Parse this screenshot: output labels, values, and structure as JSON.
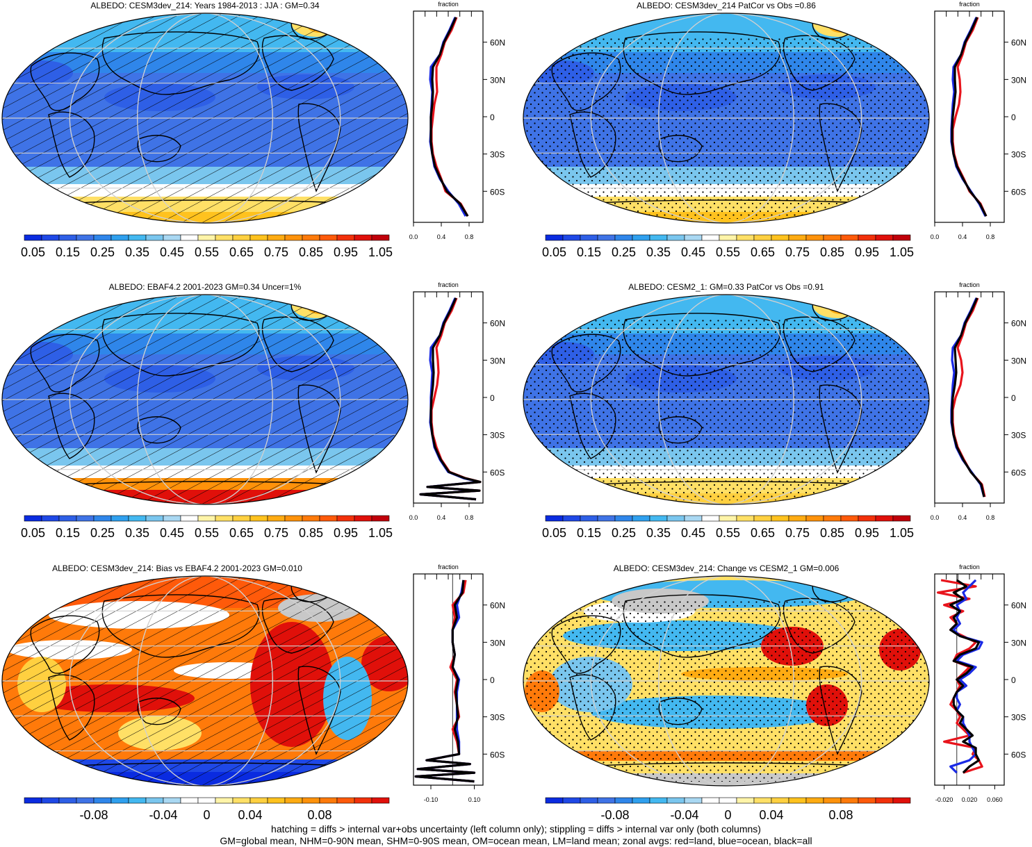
{
  "panels": [
    {
      "title": "ALBEDO: CESM3dev_214: Years 1984-2013 : JJA : GM=0.34",
      "kind": "abs",
      "hatch": true,
      "stipple": false
    },
    {
      "title": "ALBEDO: CESM3dev_214 PatCor vs Obs =0.86",
      "kind": "abs",
      "hatch": false,
      "stipple": true
    },
    {
      "title": "ALBEDO: EBAF4.2 2001-2023 GM=0.34 Uncer=1%",
      "kind": "abs",
      "hatch": true,
      "stipple": false
    },
    {
      "title": "ALBEDO: CESM2_1: GM=0.33 PatCor vs Obs =0.91",
      "kind": "abs",
      "hatch": false,
      "stipple": true
    },
    {
      "title": "ALBEDO: CESM3dev_214: Bias vs EBAF4.2 2001-2023 GM=0.010",
      "kind": "diff",
      "hatch": true,
      "stipple": false
    },
    {
      "title": "ALBEDO: CESM3dev_214: Change vs CESM2_1 GM=0.006",
      "kind": "diff",
      "hatch": false,
      "stipple": true
    }
  ],
  "colorbars": {
    "abs": {
      "colors": [
        "#0a2be0",
        "#1f48e6",
        "#2e5fe6",
        "#3f73e6",
        "#2f86ea",
        "#2fa0ee",
        "#43b8f0",
        "#7ac6ee",
        "#a9d8f2",
        "#ffffff",
        "#fff4a8",
        "#ffe066",
        "#ffd040",
        "#ffc21e",
        "#ffab12",
        "#ff920a",
        "#ff7a0a",
        "#ff5a0a",
        "#f2300a",
        "#e0100a",
        "#c0000a"
      ],
      "labels": [
        "0.05",
        "0.15",
        "0.25",
        "0.35",
        "0.45",
        "0.55",
        "0.65",
        "0.75",
        "0.85",
        "0.95",
        "1.05"
      ]
    },
    "diff": {
      "colors": [
        "#0a2be0",
        "#1f48e6",
        "#2e5fe6",
        "#3f73e6",
        "#2f86ea",
        "#2fa0ee",
        "#43b8f0",
        "#7ac6ee",
        "#a9d8f2",
        "#ffffff",
        "#ffffff",
        "#fff4a8",
        "#ffe066",
        "#ffd040",
        "#ffc21e",
        "#ffab12",
        "#ff920a",
        "#ff7a0a",
        "#ff5a0a",
        "#f2300a",
        "#e0100a"
      ],
      "labels": [
        "-0.08",
        "-0.04",
        "0",
        "0.04",
        "0.08"
      ]
    }
  },
  "chart_data": [
    {
      "type": "line",
      "panel": 0,
      "title": "fraction",
      "ylabels": [
        "60N",
        "30N",
        "0",
        "30S",
        "60S"
      ],
      "xlabels": [
        "0.0",
        "0.4",
        "0.8"
      ],
      "xlim": [
        0,
        1
      ],
      "ylim": [
        -85,
        85
      ],
      "lat": [
        80,
        70,
        60,
        50,
        40,
        30,
        20,
        10,
        0,
        -10,
        -20,
        -30,
        -40,
        -50,
        -60,
        -70,
        -80
      ],
      "series": [
        {
          "color": "red",
          "values": [
            0.62,
            0.55,
            0.45,
            0.4,
            0.33,
            0.33,
            0.34,
            0.3,
            0.28,
            0.26,
            0.26,
            0.28,
            0.33,
            0.4,
            0.46,
            0.68,
            0.78
          ]
        },
        {
          "color": "blue",
          "values": [
            0.6,
            0.52,
            0.43,
            0.38,
            0.25,
            0.24,
            0.27,
            0.26,
            0.25,
            0.25,
            0.24,
            0.27,
            0.3,
            0.38,
            0.5,
            0.65,
            0.75
          ]
        },
        {
          "color": "black",
          "values": [
            0.61,
            0.53,
            0.44,
            0.38,
            0.28,
            0.27,
            0.28,
            0.27,
            0.25,
            0.25,
            0.25,
            0.27,
            0.31,
            0.39,
            0.48,
            0.67,
            0.78
          ]
        }
      ]
    },
    {
      "type": "line",
      "panel": 1,
      "title": "fraction",
      "ylabels": [
        "60N",
        "30N",
        "0",
        "30S",
        "60S"
      ],
      "xlabels": [
        "0.0",
        "0.4",
        "0.8"
      ],
      "xlim": [
        0,
        1
      ],
      "ylim": [
        -85,
        85
      ],
      "lat": [
        80,
        70,
        60,
        50,
        40,
        30,
        20,
        10,
        0,
        -10,
        -20,
        -30,
        -40,
        -50,
        -60,
        -70,
        -80
      ],
      "series": [
        {
          "color": "red",
          "values": [
            0.62,
            0.55,
            0.45,
            0.4,
            0.33,
            0.36,
            0.37,
            0.35,
            0.3,
            0.26,
            0.26,
            0.28,
            0.33,
            0.42,
            0.5,
            0.66,
            0.74
          ]
        },
        {
          "color": "blue",
          "values": [
            0.6,
            0.52,
            0.43,
            0.38,
            0.27,
            0.26,
            0.28,
            0.26,
            0.25,
            0.24,
            0.24,
            0.27,
            0.31,
            0.4,
            0.52,
            0.64,
            0.73
          ]
        },
        {
          "color": "black",
          "values": [
            0.61,
            0.53,
            0.44,
            0.38,
            0.29,
            0.29,
            0.3,
            0.28,
            0.26,
            0.25,
            0.25,
            0.27,
            0.32,
            0.41,
            0.51,
            0.65,
            0.74
          ]
        }
      ]
    },
    {
      "type": "line",
      "panel": 2,
      "title": "fraction",
      "ylabels": [
        "60N",
        "30N",
        "0",
        "30S",
        "60S"
      ],
      "xlabels": [
        "0.0",
        "0.4",
        "0.8"
      ],
      "xlim": [
        0,
        1
      ],
      "ylim": [
        -85,
        85
      ],
      "lat": [
        80,
        70,
        60,
        50,
        40,
        30,
        20,
        10,
        0,
        -10,
        -20,
        -30,
        -40,
        -50,
        -60,
        -65,
        -68,
        -72,
        -75,
        -78,
        -82
      ],
      "series": [
        {
          "color": "red",
          "values": [
            0.62,
            0.55,
            0.45,
            0.4,
            0.33,
            0.35,
            0.36,
            0.34,
            0.3,
            0.26,
            0.26,
            0.28,
            0.33,
            0.4,
            0.52,
            0.75,
            0.96,
            0.2,
            0.95,
            0.1,
            0.9
          ]
        },
        {
          "color": "blue",
          "values": [
            0.6,
            0.52,
            0.43,
            0.38,
            0.25,
            0.24,
            0.27,
            0.26,
            0.25,
            0.25,
            0.24,
            0.27,
            0.3,
            0.38,
            0.5,
            0.72,
            0.95,
            0.2,
            0.94,
            0.1,
            0.9
          ]
        },
        {
          "color": "black",
          "values": [
            0.61,
            0.53,
            0.44,
            0.38,
            0.28,
            0.28,
            0.29,
            0.28,
            0.26,
            0.25,
            0.25,
            0.27,
            0.31,
            0.39,
            0.51,
            0.74,
            0.96,
            0.2,
            0.95,
            0.1,
            0.9
          ]
        }
      ]
    },
    {
      "type": "line",
      "panel": 3,
      "title": "fraction",
      "ylabels": [
        "60N",
        "30N",
        "0",
        "30S",
        "60S"
      ],
      "xlabels": [
        "0.0",
        "0.4",
        "0.8"
      ],
      "xlim": [
        0,
        1
      ],
      "ylim": [
        -85,
        85
      ],
      "lat": [
        80,
        70,
        60,
        50,
        40,
        30,
        20,
        10,
        0,
        -10,
        -20,
        -30,
        -40,
        -50,
        -60,
        -70,
        -80
      ],
      "series": [
        {
          "color": "red",
          "values": [
            0.62,
            0.55,
            0.45,
            0.4,
            0.33,
            0.38,
            0.4,
            0.37,
            0.3,
            0.26,
            0.26,
            0.28,
            0.33,
            0.42,
            0.52,
            0.68,
            0.72
          ]
        },
        {
          "color": "blue",
          "values": [
            0.6,
            0.52,
            0.43,
            0.38,
            0.26,
            0.25,
            0.28,
            0.26,
            0.25,
            0.24,
            0.24,
            0.27,
            0.31,
            0.4,
            0.53,
            0.66,
            0.71
          ]
        },
        {
          "color": "black",
          "values": [
            0.61,
            0.53,
            0.44,
            0.38,
            0.29,
            0.3,
            0.31,
            0.29,
            0.26,
            0.25,
            0.25,
            0.27,
            0.32,
            0.41,
            0.52,
            0.67,
            0.71
          ]
        }
      ]
    },
    {
      "type": "line",
      "panel": 4,
      "title": "fraction",
      "ylabels": [
        "60N",
        "30N",
        "0",
        "30S",
        "60S"
      ],
      "xlabels": [
        "-0.10",
        "0.10"
      ],
      "xlim": [
        -0.18,
        0.14
      ],
      "ylim": [
        -85,
        85
      ],
      "lat": [
        80,
        70,
        60,
        50,
        40,
        30,
        20,
        10,
        0,
        -10,
        -20,
        -30,
        -40,
        -50,
        -60,
        -65,
        -68,
        -72,
        -75,
        -78,
        -82
      ],
      "series": [
        {
          "color": "red",
          "values": [
            0.06,
            0.05,
            0.0,
            0.01,
            0.0,
            0.0,
            0.01,
            -0.01,
            0.02,
            0.01,
            0.02,
            0.03,
            0.0,
            0.02,
            0.03,
            -0.12,
            0.08,
            -0.16,
            0.1,
            -0.17,
            0.1
          ]
        },
        {
          "color": "blue",
          "values": [
            0.05,
            0.04,
            0.02,
            0.03,
            0.0,
            0.0,
            0.01,
            0.0,
            0.03,
            0.02,
            0.02,
            0.02,
            0.02,
            0.03,
            0.03,
            -0.12,
            0.08,
            -0.16,
            0.1,
            -0.17,
            0.1
          ]
        },
        {
          "color": "black",
          "values": [
            0.05,
            0.045,
            0.01,
            0.02,
            0.0,
            0.0,
            0.01,
            0.0,
            0.025,
            0.015,
            0.02,
            0.025,
            0.01,
            0.025,
            0.03,
            -0.12,
            0.08,
            -0.16,
            0.1,
            -0.17,
            0.1
          ]
        }
      ]
    },
    {
      "type": "line",
      "panel": 5,
      "title": "fraction",
      "ylabels": [
        "60N",
        "30N",
        "0",
        "30S",
        "60S"
      ],
      "xlabels": [
        "-0.020",
        "0.020",
        "0.060"
      ],
      "xlim": [
        -0.035,
        0.075
      ],
      "ylim": [
        -85,
        85
      ],
      "lat": [
        80,
        75,
        70,
        65,
        60,
        55,
        50,
        45,
        40,
        35,
        30,
        25,
        20,
        15,
        10,
        5,
        0,
        -5,
        -10,
        -15,
        -20,
        -25,
        -30,
        -35,
        -40,
        -45,
        -50,
        -55,
        -60,
        -65,
        -70,
        -75
      ],
      "series": [
        {
          "color": "red",
          "values": [
            -0.025,
            0.03,
            -0.03,
            0.02,
            -0.02,
            0.01,
            -0.01,
            0.0,
            -0.01,
            0.01,
            0.03,
            0.02,
            0.0,
            -0.005,
            0.02,
            0.01,
            0.0,
            0.005,
            0.0,
            -0.005,
            -0.01,
            0.0,
            0.005,
            0.0,
            0.01,
            0.02,
            -0.02,
            0.03,
            0.025,
            0.035,
            0.04,
            0.01
          ]
        },
        {
          "color": "blue",
          "values": [
            0.03,
            0.02,
            0.01,
            0.015,
            0.0,
            0.005,
            0.0,
            0.005,
            -0.005,
            0.005,
            0.04,
            0.035,
            0.01,
            0.0,
            0.03,
            0.02,
            0.005,
            0.015,
            0.0,
            0.0,
            0.005,
            0.0,
            0.01,
            0.01,
            0.015,
            0.02,
            0.02,
            0.025,
            0.03,
            0.02,
            -0.01,
            0.0
          ]
        },
        {
          "color": "black",
          "values": [
            0.0,
            0.015,
            -0.005,
            0.01,
            -0.01,
            0.005,
            -0.005,
            0.0,
            -0.01,
            0.005,
            0.035,
            0.03,
            0.005,
            -0.005,
            0.025,
            0.015,
            0.0,
            0.01,
            0.0,
            -0.005,
            -0.005,
            0.0,
            0.01,
            0.005,
            0.015,
            0.025,
            0.01,
            0.03,
            0.03,
            0.035,
            0.02,
            0.01
          ]
        }
      ]
    }
  ],
  "footnote": {
    "line1": "hatching = diffs > internal var+obs uncertainty (left column only); stippling = diffs > internal var only (both columns)",
    "line2": "GM=global mean, NHM=0-90N mean, SHM=0-90S mean, OM=ocean mean, LM=land mean; zonal avgs: red=land, blue=ocean, black=all"
  }
}
